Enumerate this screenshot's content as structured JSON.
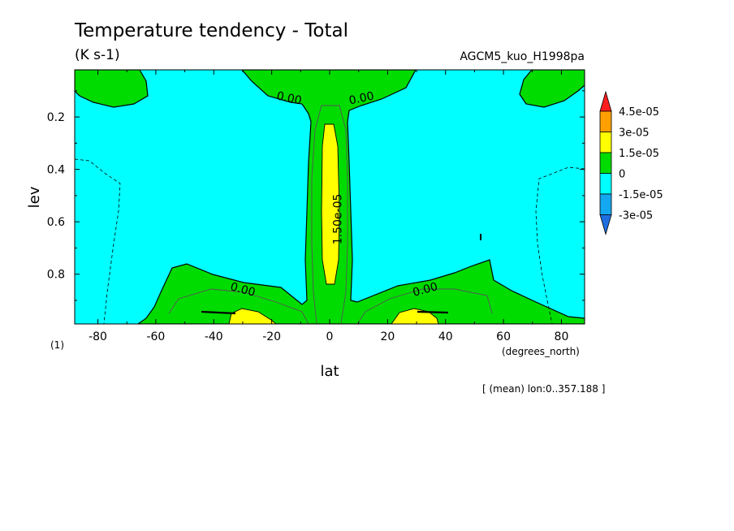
{
  "chart_data": {
    "type": "contour",
    "title": "Temperature tendency - Total",
    "units": "(K s-1)",
    "dataset": "AGCM5_kuo_H1998pa",
    "xlabel": "lat",
    "ylabel": "lev",
    "x_units": "(degrees_north)",
    "page_tag": "(1)",
    "footnote": "[ (mean) lon:0..357.188 ]",
    "xlim": [
      -88,
      88
    ],
    "ylim": [
      0.02,
      0.99
    ],
    "y_inverted": true,
    "xticks": [
      "-80",
      "-60",
      "-40",
      "-20",
      "0",
      "20",
      "40",
      "60",
      "80"
    ],
    "xtick_values": [
      -80,
      -60,
      -40,
      -20,
      0,
      20,
      40,
      60,
      80
    ],
    "yticks": [
      "0.2",
      "0.4",
      "0.6",
      "0.8"
    ],
    "ytick_values": [
      0.2,
      0.4,
      0.6,
      0.8
    ],
    "colorbar": {
      "labels": [
        "4.5e-05",
        "3e-05",
        "1.5e-05",
        "0",
        "-1.5e-05",
        "-3e-05"
      ],
      "bands": [
        {
          "from": "-inf",
          "to": -3e-05,
          "color": "#1f6fe0"
        },
        {
          "from": -3e-05,
          "to": -1.5e-05,
          "color": "#14a8f0"
        },
        {
          "from": -1.5e-05,
          "to": 0,
          "color": "#00ffff"
        },
        {
          "from": 0,
          "to": 1.5e-05,
          "color": "#00dc00"
        },
        {
          "from": 1.5e-05,
          "to": 3e-05,
          "color": "#ffff00"
        },
        {
          "from": 3e-05,
          "to": 4.5e-05,
          "color": "#ffa000"
        },
        {
          "from": 4.5e-05,
          "to": "inf",
          "color": "#ff1e1e"
        }
      ]
    },
    "contour_labels": [
      {
        "text": "0.00",
        "lat": -14,
        "lev": 0.13,
        "angle": 12
      },
      {
        "text": "0.00",
        "lat": 11,
        "lev": 0.13,
        "angle": -12
      },
      {
        "text": "0.00",
        "lat": -30,
        "lev": 0.86,
        "angle": 15
      },
      {
        "text": "0.00",
        "lat": 33,
        "lev": 0.86,
        "angle": -15
      },
      {
        "text": "1.50e-05",
        "lat": 3,
        "lev": 0.59,
        "angle": -90
      }
    ],
    "fields": [
      {
        "name": "top-left green lobe",
        "value_range": [
          0,
          1.5e-05
        ],
        "color": "#00dc00",
        "outline": [
          [
            -88,
            0.02
          ],
          [
            -78,
            0.02
          ],
          [
            -74,
            0.06
          ],
          [
            -76,
            0.12
          ],
          [
            -82,
            0.14
          ],
          [
            -88,
            0.14
          ]
        ]
      },
      {
        "name": "top-right green lobe",
        "value_range": [
          0,
          1.5e-05
        ],
        "color": "#00dc00",
        "outline": [
          [
            88,
            0.02
          ],
          [
            78,
            0.02
          ],
          [
            74,
            0.06
          ],
          [
            76,
            0.12
          ],
          [
            82,
            0.14
          ],
          [
            88,
            0.14
          ]
        ]
      },
      {
        "name": "upper equatorial green",
        "value_range": [
          0,
          1.5e-05
        ],
        "color": "#00dc00",
        "outline": [
          [
            -28,
            0.02
          ],
          [
            -20,
            0.07
          ],
          [
            -9,
            0.12
          ],
          [
            -7,
            0.2
          ],
          [
            -8,
            0.6
          ],
          [
            -8,
            0.92
          ],
          [
            -20,
            0.89
          ],
          [
            -48,
            0.78
          ],
          [
            -58,
            0.88
          ],
          [
            -52,
            0.99
          ],
          [
            52,
            0.99
          ],
          [
            62,
            0.95
          ],
          [
            90,
            0.99
          ],
          [
            90,
            0.98
          ],
          [
            80,
            0.92
          ],
          [
            72,
            0.88
          ],
          [
            60,
            0.85
          ],
          [
            56,
            0.76
          ],
          [
            44,
            0.83
          ],
          [
            30,
            0.86
          ],
          [
            10,
            0.92
          ],
          [
            9,
            0.6
          ],
          [
            8,
            0.2
          ],
          [
            8,
            0.12
          ],
          [
            20,
            0.08
          ],
          [
            30,
            0.06
          ],
          [
            36,
            0.02
          ]
        ]
      },
      {
        "name": "equatorial yellow column",
        "value_range": [
          1.5e-05,
          3e-05
        ],
        "color": "#ffff00",
        "outline": [
          [
            -2,
            0.23
          ],
          [
            2,
            0.23
          ],
          [
            3,
            0.4
          ],
          [
            3,
            0.6
          ],
          [
            2,
            0.83
          ],
          [
            -2,
            0.83
          ],
          [
            -3,
            0.6
          ],
          [
            -3,
            0.4
          ]
        ]
      },
      {
        "name": "lower-left yellow patch",
        "value_range": [
          1.5e-05,
          3e-05
        ],
        "color": "#ffff00",
        "outline": [
          [
            -38,
            0.99
          ],
          [
            -34,
            0.93
          ],
          [
            -28,
            0.93
          ],
          [
            -22,
            0.97
          ],
          [
            -20,
            0.99
          ]
        ]
      },
      {
        "name": "lower-right yellow patch",
        "value_range": [
          1.5e-05,
          3e-05
        ],
        "color": "#ffff00",
        "outline": [
          [
            20,
            0.99
          ],
          [
            24,
            0.93
          ],
          [
            30,
            0.93
          ],
          [
            38,
            0.97
          ],
          [
            40,
            0.99
          ]
        ]
      }
    ]
  }
}
